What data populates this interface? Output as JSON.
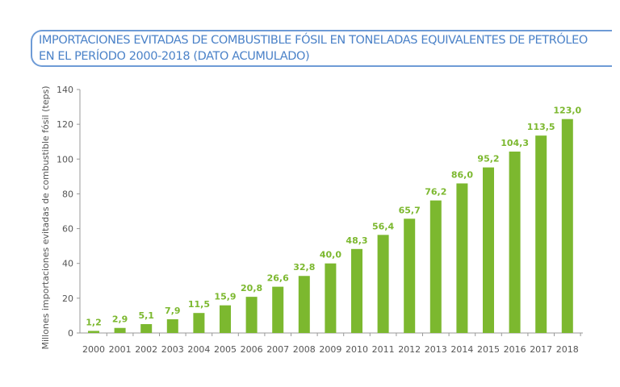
{
  "chart_data": {
    "type": "bar",
    "title": "IMPORTACIONES EVITADAS DE COMBUSTIBLE FÓSIL EN TONELADAS EQUIVALENTES DE PETRÓLEO EN EL PERÍODO 2000-2018 (DATO ACUMULADO)",
    "xlabel": "",
    "ylabel": "Millones importaciones evitadas de combustible fósil (teps)",
    "categories": [
      "2000",
      "2001",
      "2002",
      "2003",
      "2004",
      "2005",
      "2006",
      "2007",
      "2008",
      "2009",
      "2010",
      "2011",
      "2012",
      "2013",
      "2014",
      "2015",
      "2016",
      "2017",
      "2018"
    ],
    "values": [
      1.2,
      2.9,
      5.1,
      7.9,
      11.5,
      15.9,
      20.8,
      26.6,
      32.8,
      40.0,
      48.3,
      56.4,
      65.7,
      76.2,
      86.0,
      95.2,
      104.3,
      113.5,
      123.0
    ],
    "data_labels": [
      "1,2",
      "2,9",
      "5,1",
      "7,9",
      "11,5",
      "15,9",
      "20,8",
      "26,6",
      "32,8",
      "40,0",
      "48,3",
      "56,4",
      "65,7",
      "76,2",
      "86,0",
      "95,2",
      "104,3",
      "113,5",
      "123,0"
    ],
    "ylim": [
      0,
      140
    ],
    "yticks": [
      0,
      20,
      40,
      60,
      80,
      100,
      120,
      140
    ],
    "grid": false,
    "bar_color": "#7cb82f"
  }
}
